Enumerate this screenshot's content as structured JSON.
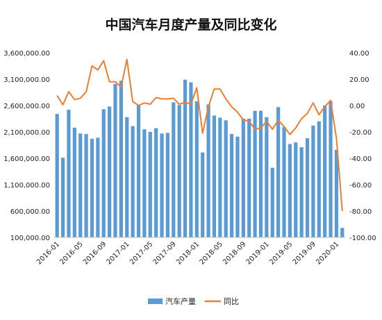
{
  "chart_data": {
    "type": "bar",
    "title": "中国汽车月度产量及同比变化",
    "categories": [
      "2016-01",
      "2016-02",
      "2016-03",
      "2016-04",
      "2016-05",
      "2016-06",
      "2016-07",
      "2016-08",
      "2016-09",
      "2016-10",
      "2016-11",
      "2016-12",
      "2017-01",
      "2017-02",
      "2017-03",
      "2017-04",
      "2017-05",
      "2017-06",
      "2017-07",
      "2017-08",
      "2017-09",
      "2017-10",
      "2017-11",
      "2017-12",
      "2018-01",
      "2018-02",
      "2018-03",
      "2018-04",
      "2018-05",
      "2018-06",
      "2018-07",
      "2018-08",
      "2018-09",
      "2018-10",
      "2018-11",
      "2018-12",
      "2019-01",
      "2019-02",
      "2019-03",
      "2019-04",
      "2019-05",
      "2019-06",
      "2019-07",
      "2019-08",
      "2019-09",
      "2019-10",
      "2019-11",
      "2019-12",
      "2020-01",
      "2020-02"
    ],
    "x_tick_labels": [
      "2016-01",
      "2016-05",
      "2016-09",
      "2017-01",
      "2017-05",
      "2017-09",
      "2018-01",
      "2018-05",
      "2018-09",
      "2019-01",
      "2019-05",
      "2019-09",
      "2020-01"
    ],
    "x_tick_every": 4,
    "series": [
      {
        "name": "汽车产量",
        "axis": "left",
        "type": "bar",
        "color": "#5b9bd5",
        "values": [
          2440000,
          1610000,
          2520000,
          2180000,
          2070000,
          2060000,
          1970000,
          1990000,
          2530000,
          2580000,
          3010000,
          3070000,
          2380000,
          2210000,
          2610000,
          2150000,
          2100000,
          2170000,
          2070000,
          2080000,
          2660000,
          2610000,
          3090000,
          3040000,
          2680000,
          1710000,
          2620000,
          2410000,
          2370000,
          2320000,
          2060000,
          2010000,
          2350000,
          2350000,
          2500000,
          2500000,
          2380000,
          1420000,
          2570000,
          2190000,
          1870000,
          1900000,
          1810000,
          1980000,
          2220000,
          2300000,
          2600000,
          2680000,
          1760000,
          280000
        ]
      },
      {
        "name": "同比",
        "axis": "right",
        "type": "line",
        "color": "#ed7d31",
        "values": [
          7.5,
          0.5,
          10.5,
          4.5,
          5.5,
          10.5,
          30.0,
          27.0,
          34.0,
          18.0,
          18.0,
          14.0,
          35.0,
          3.0,
          0.0,
          2.0,
          1.0,
          6.0,
          5.0,
          5.0,
          5.5,
          1.0,
          2.5,
          1.0,
          13.5,
          -21.0,
          -1.0,
          12.5,
          12.5,
          5.0,
          -1.0,
          -5.0,
          -11.0,
          -12.0,
          -18.0,
          -17.0,
          -12.0,
          -18.0,
          -11.0,
          -16.0,
          -22.0,
          -17.0,
          -10.0,
          -6.0,
          2.0,
          -7.0,
          -1.0,
          4.0,
          -25.0,
          -80.0
        ]
      }
    ],
    "y_left": {
      "min": 100000,
      "max": 3600000,
      "step": 500000,
      "tick_labels": [
        "100,000.00",
        "600,000.00",
        "1,100,000.00",
        "1,600,000.00",
        "2,100,000.00",
        "2,600,000.00",
        "3,100,000.00",
        "3,600,000.00"
      ]
    },
    "y_right": {
      "min": -100,
      "max": 40,
      "step": 20,
      "tick_labels": [
        "-100.00",
        "-80.00",
        "-60.00",
        "-40.00",
        "-20.00",
        "0.00",
        "20.00",
        "40.00"
      ]
    },
    "grid": false,
    "legend": {
      "position": "bottom",
      "entries": [
        {
          "label": "汽车产量",
          "marker": "bar",
          "color": "#5b9bd5"
        },
        {
          "label": "同比",
          "marker": "line",
          "color": "#ed7d31"
        }
      ]
    }
  }
}
